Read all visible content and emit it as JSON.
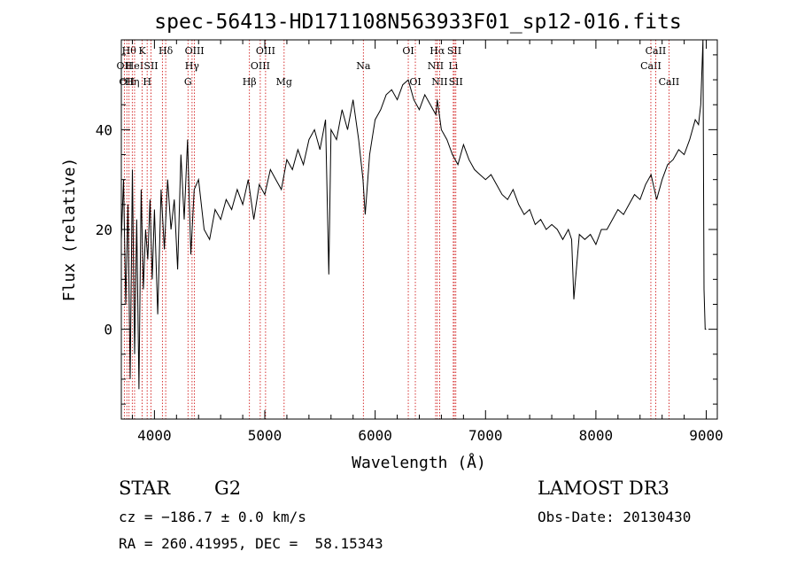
{
  "title": "spec-56413-HD171108N563933F01_sp12-016.fits",
  "info": {
    "object_class": "STAR",
    "subclass": "G2",
    "survey": "LAMOST DR3",
    "cz": "cz = −186.7 ± 0.0 km/s",
    "obs_date": "Obs-Date: 20130430",
    "coords": "RA = 260.41995, DEC =  58.15343"
  },
  "chart_data": {
    "type": "line",
    "xlabel": "Wavelength (Å)",
    "ylabel": "Flux (relative)",
    "xlim": [
      3700,
      9100
    ],
    "ylim": [
      -18,
      58
    ],
    "xticks": [
      4000,
      5000,
      6000,
      7000,
      8000,
      9000
    ],
    "yticks": [
      0,
      20,
      40
    ],
    "line_color": "#000000",
    "marker_color": "#cc0000",
    "series": [
      {
        "x": [
          3700,
          3720,
          3740,
          3760,
          3780,
          3800,
          3820,
          3840,
          3860,
          3880,
          3900,
          3920,
          3940,
          3960,
          3980,
          4000,
          4030,
          4060,
          4090,
          4120,
          4150,
          4180,
          4210,
          4240,
          4270,
          4300,
          4330,
          4360,
          4400,
          4450,
          4500,
          4550,
          4600,
          4650,
          4700,
          4750,
          4800,
          4850,
          4900,
          4950,
          5000,
          5050,
          5100,
          5150,
          5200,
          5250,
          5300,
          5350,
          5400,
          5450,
          5500,
          5550,
          5580,
          5600,
          5650,
          5700,
          5750,
          5800,
          5850,
          5890,
          5910,
          5950,
          6000,
          6050,
          6100,
          6150,
          6200,
          6250,
          6300,
          6350,
          6400,
          6450,
          6500,
          6550,
          6563,
          6600,
          6650,
          6700,
          6750,
          6800,
          6850,
          6900,
          6950,
          7000,
          7050,
          7100,
          7150,
          7200,
          7250,
          7300,
          7350,
          7400,
          7450,
          7500,
          7550,
          7600,
          7650,
          7700,
          7750,
          7780,
          7800,
          7850,
          7900,
          7950,
          8000,
          8050,
          8100,
          8150,
          8200,
          8250,
          8300,
          8350,
          8400,
          8450,
          8500,
          8550,
          8600,
          8650,
          8700,
          8750,
          8800,
          8850,
          8900,
          8930,
          8950,
          8970,
          8980,
          8990,
          9000
        ],
        "y": [
          18,
          30,
          5,
          25,
          -10,
          32,
          -5,
          22,
          -12,
          28,
          8,
          20,
          14,
          26,
          10,
          24,
          3,
          28,
          16,
          30,
          20,
          26,
          12,
          35,
          22,
          38,
          15,
          28,
          30,
          20,
          18,
          24,
          22,
          26,
          24,
          28,
          25,
          30,
          22,
          29,
          27,
          32,
          30,
          28,
          34,
          32,
          36,
          33,
          38,
          40,
          36,
          42,
          11,
          40,
          38,
          44,
          40,
          46,
          38,
          30,
          23,
          35,
          42,
          44,
          47,
          48,
          46,
          49,
          50,
          46,
          44,
          47,
          45,
          43,
          46,
          40,
          38,
          35,
          33,
          37,
          34,
          32,
          31,
          30,
          31,
          29,
          27,
          26,
          28,
          25,
          23,
          24,
          21,
          22,
          20,
          21,
          20,
          18,
          20,
          18,
          6,
          19,
          18,
          19,
          17,
          20,
          20,
          22,
          24,
          23,
          25,
          27,
          26,
          29,
          31,
          26,
          30,
          33,
          34,
          36,
          35,
          38,
          42,
          41,
          45,
          58,
          8,
          0,
          0
        ]
      }
    ],
    "lines": [
      {
        "wl": 3727,
        "label": "OII",
        "row": 2
      },
      {
        "wl": 3750,
        "label": "OII",
        "row": 3
      },
      {
        "wl": 3770,
        "label": "Hθ",
        "row": 1
      },
      {
        "wl": 3799,
        "label": "Hη",
        "row": 3
      },
      {
        "wl": 3820,
        "label": "HeI",
        "row": 2
      },
      {
        "wl": 3889,
        "label": "K",
        "row": 1
      },
      {
        "wl": 3934,
        "label": "H",
        "row": 3
      },
      {
        "wl": 3969,
        "label": "SII",
        "row": 2
      },
      {
        "wl": 4072,
        "label": "",
        "row": 0
      },
      {
        "wl": 4102,
        "label": "Hδ",
        "row": 1
      },
      {
        "wl": 4304,
        "label": "G",
        "row": 3
      },
      {
        "wl": 4341,
        "label": "Hγ",
        "row": 2
      },
      {
        "wl": 4363,
        "label": "OIII",
        "row": 1
      },
      {
        "wl": 4861,
        "label": "Hβ",
        "row": 3
      },
      {
        "wl": 4959,
        "label": "OIII",
        "row": 2
      },
      {
        "wl": 5007,
        "label": "OIII",
        "row": 1
      },
      {
        "wl": 5175,
        "label": "Mg",
        "row": 3
      },
      {
        "wl": 5893,
        "label": "Na",
        "row": 2
      },
      {
        "wl": 6300,
        "label": "OI",
        "row": 1
      },
      {
        "wl": 6364,
        "label": "OI",
        "row": 3
      },
      {
        "wl": 6548,
        "label": "NII",
        "row": 2
      },
      {
        "wl": 6563,
        "label": "Hα",
        "row": 1
      },
      {
        "wl": 6584,
        "label": "NII",
        "row": 3
      },
      {
        "wl": 6708,
        "label": "Li",
        "row": 2
      },
      {
        "wl": 6717,
        "label": "SII",
        "row": 1
      },
      {
        "wl": 6731,
        "label": "SII",
        "row": 3
      },
      {
        "wl": 8498,
        "label": "CaII",
        "row": 2
      },
      {
        "wl": 8542,
        "label": "CaII",
        "row": 1
      },
      {
        "wl": 8662,
        "label": "CaII",
        "row": 3
      }
    ]
  }
}
